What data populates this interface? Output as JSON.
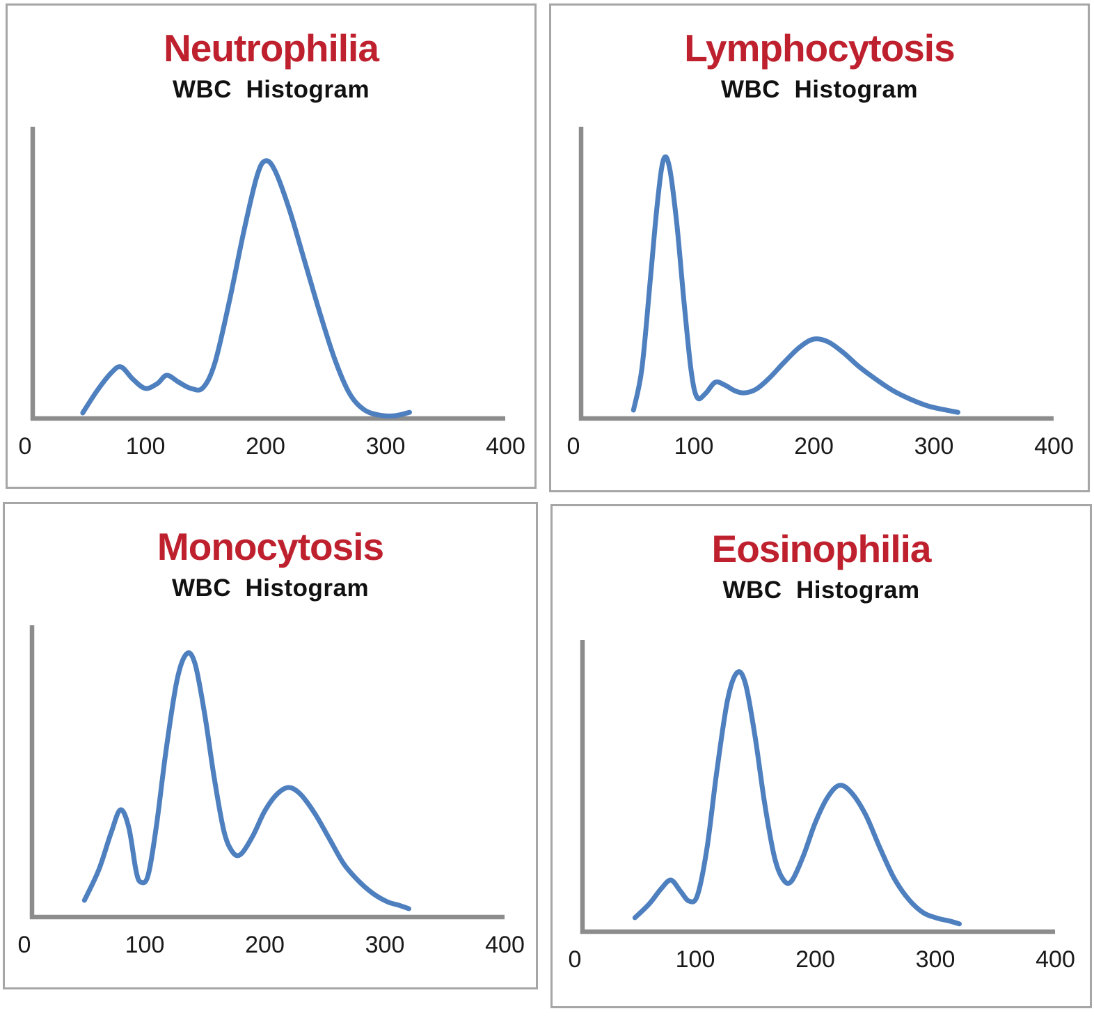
{
  "colors": {
    "title_red": "#be202e",
    "curve_blue": "#4e7fbe",
    "axis_gray": "#8c8c8c",
    "panel_border_gray": "#a6a6a6",
    "label_black": "#1a1a1a"
  },
  "x_axis_labels": [
    "0",
    "100",
    "200",
    "300",
    "400"
  ],
  "chart_data": [
    {
      "type": "line",
      "title": "Neutrophilia",
      "subtitle": "WBC  Histogram",
      "xlabel": "",
      "ylabel": "",
      "x_ticks": [
        0,
        100,
        200,
        300,
        400
      ],
      "xlim": [
        0,
        400
      ],
      "ylim": [
        0,
        1
      ],
      "grid": false,
      "legend": "none",
      "y_axis": "unlabeled",
      "series": [
        {
          "name": "wbc_curve",
          "points": [
            [
              48,
              0.02
            ],
            [
              60,
              0.1
            ],
            [
              72,
              0.165
            ],
            [
              80,
              0.185
            ],
            [
              90,
              0.14
            ],
            [
              100,
              0.108
            ],
            [
              110,
              0.125
            ],
            [
              118,
              0.155
            ],
            [
              128,
              0.13
            ],
            [
              138,
              0.108
            ],
            [
              148,
              0.11
            ],
            [
              158,
              0.2
            ],
            [
              170,
              0.42
            ],
            [
              182,
              0.67
            ],
            [
              193,
              0.87
            ],
            [
              200,
              0.925
            ],
            [
              208,
              0.89
            ],
            [
              220,
              0.75
            ],
            [
              233,
              0.56
            ],
            [
              246,
              0.37
            ],
            [
              258,
              0.21
            ],
            [
              270,
              0.09
            ],
            [
              282,
              0.032
            ],
            [
              295,
              0.012
            ],
            [
              308,
              0.01
            ],
            [
              320,
              0.022
            ]
          ]
        }
      ]
    },
    {
      "type": "line",
      "title": "Lymphocytosis",
      "subtitle": "WBC  Histogram",
      "xlabel": "",
      "ylabel": "",
      "x_ticks": [
        0,
        100,
        200,
        300,
        400
      ],
      "xlim": [
        0,
        400
      ],
      "ylim": [
        0,
        1
      ],
      "grid": false,
      "legend": "none",
      "y_axis": "unlabeled",
      "series": [
        {
          "name": "wbc_curve",
          "points": [
            [
              50,
              0.03
            ],
            [
              57,
              0.18
            ],
            [
              64,
              0.5
            ],
            [
              70,
              0.78
            ],
            [
              75,
              0.93
            ],
            [
              80,
              0.9
            ],
            [
              86,
              0.7
            ],
            [
              92,
              0.42
            ],
            [
              98,
              0.17
            ],
            [
              103,
              0.075
            ],
            [
              110,
              0.09
            ],
            [
              118,
              0.13
            ],
            [
              126,
              0.12
            ],
            [
              134,
              0.1
            ],
            [
              142,
              0.092
            ],
            [
              152,
              0.105
            ],
            [
              163,
              0.145
            ],
            [
              175,
              0.2
            ],
            [
              188,
              0.255
            ],
            [
              200,
              0.285
            ],
            [
              212,
              0.275
            ],
            [
              225,
              0.235
            ],
            [
              238,
              0.185
            ],
            [
              252,
              0.14
            ],
            [
              266,
              0.1
            ],
            [
              280,
              0.07
            ],
            [
              295,
              0.045
            ],
            [
              308,
              0.032
            ],
            [
              320,
              0.022
            ]
          ]
        }
      ]
    },
    {
      "type": "line",
      "title": "Monocytosis",
      "subtitle": "WBC  Histogram",
      "xlabel": "",
      "ylabel": "",
      "x_ticks": [
        0,
        100,
        200,
        300,
        400
      ],
      "xlim": [
        0,
        400
      ],
      "ylim": [
        0,
        1
      ],
      "grid": false,
      "legend": "none",
      "y_axis": "unlabeled",
      "series": [
        {
          "name": "wbc_curve",
          "points": [
            [
              50,
              0.06
            ],
            [
              62,
              0.17
            ],
            [
              72,
              0.3
            ],
            [
              80,
              0.385
            ],
            [
              87,
              0.32
            ],
            [
              93,
              0.165
            ],
            [
              97,
              0.125
            ],
            [
              103,
              0.15
            ],
            [
              110,
              0.33
            ],
            [
              118,
              0.6
            ],
            [
              127,
              0.85
            ],
            [
              135,
              0.945
            ],
            [
              142,
              0.91
            ],
            [
              150,
              0.73
            ],
            [
              158,
              0.5
            ],
            [
              166,
              0.31
            ],
            [
              173,
              0.235
            ],
            [
              180,
              0.225
            ],
            [
              190,
              0.29
            ],
            [
              200,
              0.38
            ],
            [
              210,
              0.44
            ],
            [
              220,
              0.465
            ],
            [
              230,
              0.44
            ],
            [
              242,
              0.37
            ],
            [
              254,
              0.28
            ],
            [
              266,
              0.19
            ],
            [
              278,
              0.13
            ],
            [
              290,
              0.085
            ],
            [
              302,
              0.055
            ],
            [
              312,
              0.042
            ],
            [
              320,
              0.03
            ]
          ]
        }
      ]
    },
    {
      "type": "line",
      "title": "Eosinophilia",
      "subtitle": "WBC  Histogram",
      "xlabel": "",
      "ylabel": "",
      "x_ticks": [
        0,
        100,
        200,
        300,
        400
      ],
      "xlim": [
        0,
        400
      ],
      "ylim": [
        0,
        1
      ],
      "grid": false,
      "legend": "none",
      "y_axis": "unlabeled",
      "series": [
        {
          "name": "wbc_curve",
          "points": [
            [
              50,
              0.05
            ],
            [
              62,
              0.1
            ],
            [
              72,
              0.155
            ],
            [
              80,
              0.185
            ],
            [
              88,
              0.145
            ],
            [
              95,
              0.11
            ],
            [
              102,
              0.13
            ],
            [
              110,
              0.3
            ],
            [
              118,
              0.57
            ],
            [
              127,
              0.83
            ],
            [
              135,
              0.93
            ],
            [
              142,
              0.89
            ],
            [
              150,
              0.7
            ],
            [
              158,
              0.46
            ],
            [
              166,
              0.27
            ],
            [
              173,
              0.19
            ],
            [
              180,
              0.18
            ],
            [
              190,
              0.27
            ],
            [
              200,
              0.39
            ],
            [
              210,
              0.48
            ],
            [
              220,
              0.525
            ],
            [
              230,
              0.5
            ],
            [
              242,
              0.42
            ],
            [
              254,
              0.3
            ],
            [
              266,
              0.19
            ],
            [
              278,
              0.115
            ],
            [
              290,
              0.068
            ],
            [
              302,
              0.048
            ],
            [
              312,
              0.038
            ],
            [
              320,
              0.028
            ]
          ]
        }
      ]
    }
  ]
}
